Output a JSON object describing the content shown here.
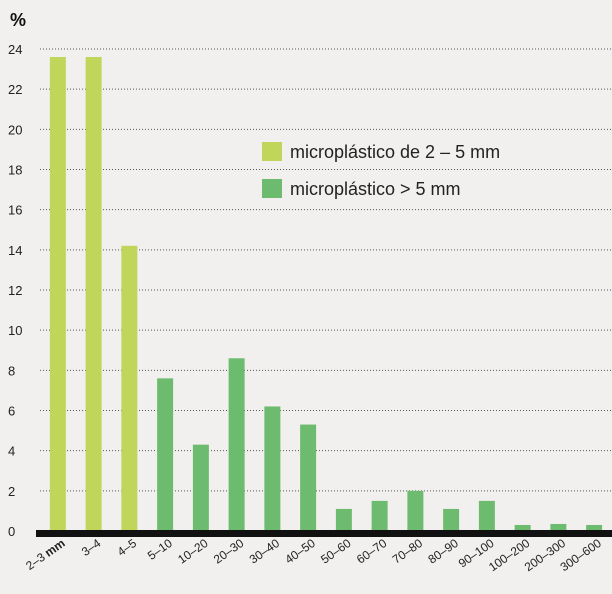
{
  "chart_data": {
    "type": "bar",
    "ylabel": "%",
    "ylim": [
      0,
      24
    ],
    "yticks": [
      0,
      2,
      4,
      6,
      8,
      10,
      12,
      14,
      16,
      18,
      20,
      22,
      24
    ],
    "grid": true,
    "legend_position": "top-right",
    "categories": [
      "2–3",
      "3–4",
      "4–5",
      "5–10",
      "10–20",
      "20–30",
      "30–40",
      "40–50",
      "50–60",
      "60–70",
      "70–80",
      "80–90",
      "90–100",
      "100–200",
      "200–300",
      "300–600"
    ],
    "first_category_unit": "mm",
    "series": [
      {
        "name": "microplástico de 2 – 5 mm",
        "color": "#bfd65b",
        "values": [
          23.6,
          23.6,
          14.2,
          null,
          null,
          null,
          null,
          null,
          null,
          null,
          null,
          null,
          null,
          null,
          null,
          null
        ]
      },
      {
        "name": "microplástico > 5 mm",
        "color": "#6dbb6e",
        "values": [
          null,
          null,
          null,
          7.6,
          4.3,
          8.6,
          6.2,
          5.3,
          1.1,
          1.5,
          2.0,
          1.1,
          1.5,
          0.3,
          0.35,
          0.3
        ]
      }
    ]
  }
}
